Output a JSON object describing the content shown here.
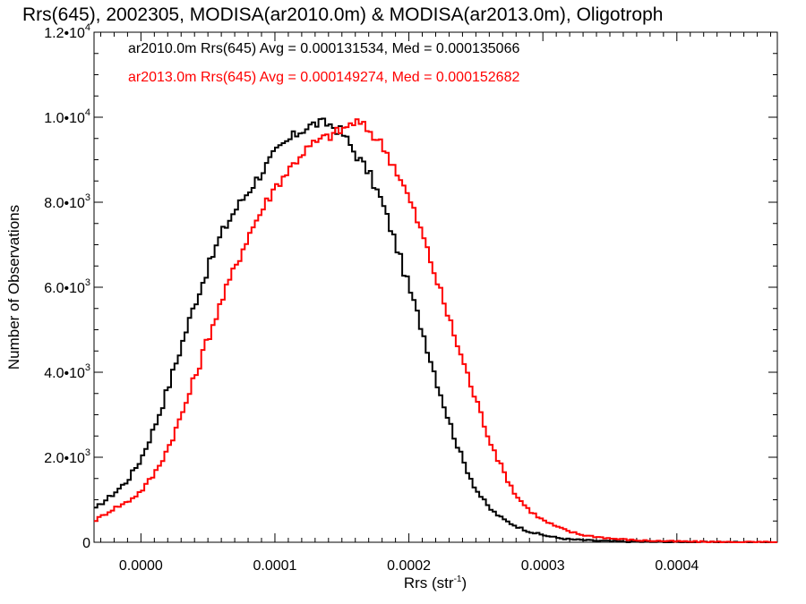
{
  "chart_data": {
    "type": "line",
    "title": "Rrs(645), 2002305, MODISA(ar2010.0m) & MODISA(ar2013.0m), Oligotroph",
    "xlabel": "Rrs (str",
    "xlabel_sup": "-1",
    "xlabel_close": ")",
    "ylabel": "Number of Observations",
    "xlim": [
      -3.5e-05,
      0.000475
    ],
    "ylim": [
      0,
      12000
    ],
    "xticks": [
      0.0,
      0.0001,
      0.0002,
      0.0003,
      0.0004
    ],
    "xtick_labels": [
      "0.0000",
      "0.0001",
      "0.0002",
      "0.0003",
      "0.0004"
    ],
    "yticks": [
      0,
      2000,
      4000,
      6000,
      8000,
      10000,
      12000
    ],
    "ytick_labels": [
      {
        "mant": "0",
        "exp": ""
      },
      {
        "mant": "2.0•10",
        "exp": "3"
      },
      {
        "mant": "4.0•10",
        "exp": "3"
      },
      {
        "mant": "6.0•10",
        "exp": "3"
      },
      {
        "mant": "8.0•10",
        "exp": "3"
      },
      {
        "mant": "1.0•10",
        "exp": "4"
      },
      {
        "mant": "1.2•10",
        "exp": "4"
      }
    ],
    "grid": false,
    "legend_position": "top-left",
    "series": [
      {
        "name": "ar2010.0m Rrs(645) Avg = 0.000131534, Med = 0.000135066",
        "color": "#000000",
        "points": [
          [
            -3.5e-05,
            750
          ],
          [
            -3e-05,
            900
          ],
          [
            -2e-05,
            1150
          ],
          [
            -1e-05,
            1450
          ],
          [
            0.0,
            1950
          ],
          [
            1e-05,
            2700
          ],
          [
            2e-05,
            3600
          ],
          [
            3e-05,
            4600
          ],
          [
            4e-05,
            5600
          ],
          [
            5e-05,
            6450
          ],
          [
            6e-05,
            7250
          ],
          [
            7e-05,
            7800
          ],
          [
            8e-05,
            8250
          ],
          [
            9e-05,
            8700
          ],
          [
            0.0001,
            9150
          ],
          [
            0.00011,
            9450
          ],
          [
            0.00012,
            9700
          ],
          [
            0.00013,
            9850
          ],
          [
            0.00014,
            9850
          ],
          [
            0.00015,
            9650
          ],
          [
            0.00016,
            9150
          ],
          [
            0.00017,
            8700
          ],
          [
            0.00018,
            8000
          ],
          [
            0.00019,
            7050
          ],
          [
            0.0002,
            6000
          ],
          [
            0.00021,
            5000
          ],
          [
            0.00022,
            3900
          ],
          [
            0.00023,
            2850
          ],
          [
            0.00024,
            1950
          ],
          [
            0.00025,
            1250
          ],
          [
            0.00026,
            800
          ],
          [
            0.00027,
            550
          ],
          [
            0.00028,
            380
          ],
          [
            0.00029,
            250
          ],
          [
            0.0003,
            170
          ],
          [
            0.00031,
            110
          ],
          [
            0.00032,
            70
          ],
          [
            0.00034,
            35
          ],
          [
            0.00036,
            15
          ],
          [
            0.00038,
            8
          ],
          [
            0.0004,
            4
          ],
          [
            0.00042,
            2
          ],
          [
            0.000475,
            0
          ]
        ]
      },
      {
        "name": "ar2013.0m Rrs(645) Avg = 0.000149274, Med = 0.000152682",
        "color": "#ff0000",
        "points": [
          [
            -3.5e-05,
            500
          ],
          [
            -3e-05,
            600
          ],
          [
            -2e-05,
            800
          ],
          [
            -1e-05,
            950
          ],
          [
            0.0,
            1200
          ],
          [
            1e-05,
            1600
          ],
          [
            2e-05,
            2200
          ],
          [
            3e-05,
            2950
          ],
          [
            4e-05,
            3850
          ],
          [
            5e-05,
            4800
          ],
          [
            6e-05,
            5650
          ],
          [
            7e-05,
            6450
          ],
          [
            8e-05,
            7200
          ],
          [
            9e-05,
            7800
          ],
          [
            0.0001,
            8350
          ],
          [
            0.00011,
            8750
          ],
          [
            0.00012,
            9150
          ],
          [
            0.00013,
            9400
          ],
          [
            0.00014,
            9550
          ],
          [
            0.00015,
            9700
          ],
          [
            0.00016,
            9900
          ],
          [
            0.00017,
            9700
          ],
          [
            0.00018,
            9350
          ],
          [
            0.00019,
            8800
          ],
          [
            0.0002,
            8100
          ],
          [
            0.00021,
            7250
          ],
          [
            0.00022,
            6250
          ],
          [
            0.00023,
            5250
          ],
          [
            0.00024,
            4300
          ],
          [
            0.00025,
            3350
          ],
          [
            0.00026,
            2450
          ],
          [
            0.00027,
            1700
          ],
          [
            0.00028,
            1100
          ],
          [
            0.00029,
            750
          ],
          [
            0.0003,
            520
          ],
          [
            0.00031,
            370
          ],
          [
            0.00032,
            250
          ],
          [
            0.00033,
            170
          ],
          [
            0.00035,
            90
          ],
          [
            0.00037,
            45
          ],
          [
            0.0004,
            20
          ],
          [
            0.00044,
            5
          ],
          [
            0.000475,
            0
          ]
        ]
      }
    ]
  }
}
